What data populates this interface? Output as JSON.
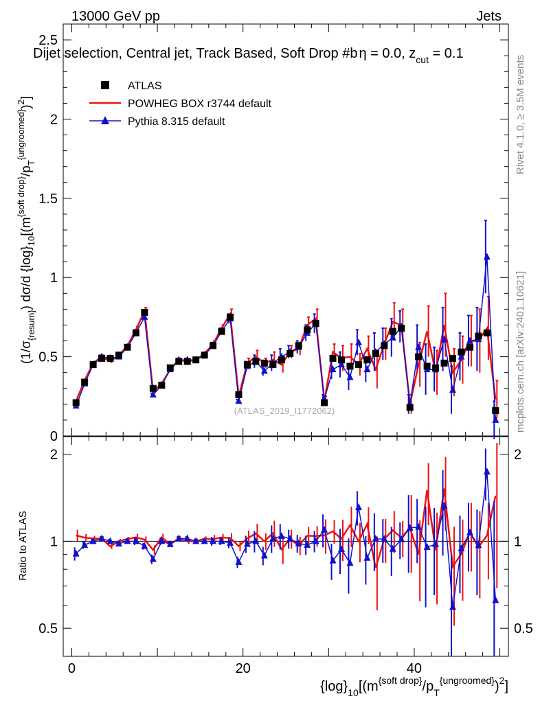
{
  "header": {
    "energy_label": "13000 GeV pp",
    "process_label": "Jets",
    "subtitle": "Dijet selection, Central jet, Track Based, Soft Drop #b = 0.0, z_cut = 0.1",
    "subtitle_main": "Dijet selection, Central jet, Track Based, Soft Drop #b",
    "subtitle_eta": "η = 0.0, z",
    "subtitle_cut": "cut",
    "subtitle_end": " = 0.1"
  },
  "side_labels": {
    "rivet": "Rivet 4.1.0, ≥ 3.5M events",
    "mcplots": "mcplots.cern.ch [arXiv:2401.10621]"
  },
  "watermark": "(ATLAS_2019_I1772062)",
  "axes": {
    "ylabel_main": "(1/σ{resum}) dσ/d {log}10[(m{soft drop}/pT{ungroomed})2]",
    "ylabel_ratio": "Ratio to ATLAS",
    "xlabel": "{log}10[(m{soft drop}/pT{ungroomed})2]",
    "main_yticks": [
      "0",
      "0.5",
      "1",
      "1.5",
      "2",
      "2.5"
    ],
    "ratio_yticks": [
      "0.5",
      "1",
      "2"
    ],
    "xticks": [
      "0",
      "20",
      "40"
    ]
  },
  "legend": [
    {
      "label": "ATLAS",
      "color": "#000000",
      "marker": "square"
    },
    {
      "label": "POWHEG BOX r3744 default",
      "color": "#ee1111",
      "marker": "line"
    },
    {
      "label": "Pythia 8.315 default",
      "color": "#1111cc",
      "marker": "triangle"
    }
  ],
  "chart_data": {
    "type": "line",
    "title": "Dijet selection, Central jet, Track Based, Soft Drop #b = 0.0, z_cut = 0.1",
    "xlabel": "{log}10[(m{soft drop}/pT{ungroomed})2]",
    "ylabel": "(1/σ{resum}) dσ/d {log}10[(m{soft drop}/pT{ungroomed})2]",
    "xlim": [
      -1,
      51
    ],
    "ylim": [
      0,
      2.6
    ],
    "ratio_ylim": [
      0.4,
      2.3
    ],
    "x": [
      0.5,
      1.5,
      2.5,
      3.5,
      4.5,
      5.5,
      6.5,
      7.5,
      8.5,
      9.5,
      10.5,
      11.5,
      12.5,
      13.5,
      14.5,
      15.5,
      16.5,
      17.5,
      18.5,
      19.5,
      20.5,
      21.5,
      22.5,
      23.5,
      24.5,
      25.5,
      26.5,
      27.5,
      28.5,
      29.5,
      30.5,
      31.5,
      32.5,
      33.5,
      34.5,
      35.5,
      36.5,
      37.5,
      38.5,
      39.5,
      40.5,
      41.5,
      42.5,
      43.5,
      44.5,
      45.5,
      46.5,
      47.5,
      48.5,
      49.5
    ],
    "series": [
      {
        "name": "ATLAS",
        "color": "#000000",
        "values": [
          0.21,
          0.34,
          0.45,
          0.49,
          0.49,
          0.51,
          0.56,
          0.65,
          0.78,
          0.3,
          0.32,
          0.43,
          0.47,
          0.47,
          0.48,
          0.51,
          0.57,
          0.66,
          0.75,
          0.26,
          0.45,
          0.47,
          0.46,
          0.45,
          0.48,
          0.52,
          0.57,
          0.67,
          0.71,
          0.21,
          0.49,
          0.48,
          0.44,
          0.45,
          0.48,
          0.52,
          0.57,
          0.66,
          0.68,
          0.18,
          0.5,
          0.44,
          0.43,
          0.46,
          0.49,
          0.53,
          0.56,
          0.63,
          0.65,
          0.16
        ]
      },
      {
        "name": "POWHEG BOX r3744 default",
        "color": "#ee1111",
        "values": [
          0.22,
          0.35,
          0.46,
          0.5,
          0.47,
          0.51,
          0.57,
          0.67,
          0.79,
          0.28,
          0.33,
          0.42,
          0.48,
          0.47,
          0.48,
          0.52,
          0.58,
          0.68,
          0.77,
          0.25,
          0.46,
          0.5,
          0.46,
          0.48,
          0.45,
          0.53,
          0.55,
          0.7,
          0.74,
          0.22,
          0.53,
          0.49,
          0.5,
          0.45,
          0.55,
          0.42,
          0.58,
          0.72,
          0.7,
          0.2,
          0.45,
          0.66,
          0.4,
          0.7,
          0.4,
          0.48,
          0.6,
          0.6,
          0.68,
          0.23
        ]
      },
      {
        "name": "Pythia 8.315 default",
        "color": "#1111cc",
        "values": [
          0.19,
          0.33,
          0.45,
          0.5,
          0.49,
          0.5,
          0.56,
          0.65,
          0.75,
          0.26,
          0.32,
          0.42,
          0.48,
          0.48,
          0.48,
          0.51,
          0.57,
          0.66,
          0.74,
          0.22,
          0.44,
          0.47,
          0.41,
          0.46,
          0.5,
          0.53,
          0.56,
          0.65,
          0.71,
          0.23,
          0.42,
          0.45,
          0.37,
          0.59,
          0.42,
          0.53,
          0.58,
          0.62,
          0.69,
          0.2,
          0.56,
          0.42,
          0.42,
          0.61,
          0.29,
          0.5,
          0.6,
          0.61,
          1.13,
          0.1
        ]
      }
    ],
    "errors": {
      "POWHEG BOX r3744 default": [
        0.01,
        0.01,
        0.01,
        0.01,
        0.01,
        0.01,
        0.01,
        0.02,
        0.02,
        0.01,
        0.01,
        0.01,
        0.01,
        0.01,
        0.01,
        0.01,
        0.02,
        0.02,
        0.03,
        0.01,
        0.03,
        0.04,
        0.03,
        0.05,
        0.05,
        0.04,
        0.04,
        0.05,
        0.06,
        0.03,
        0.05,
        0.08,
        0.08,
        0.07,
        0.08,
        0.12,
        0.1,
        0.12,
        0.1,
        0.06,
        0.14,
        0.16,
        0.14,
        0.2,
        0.15,
        0.15,
        0.16,
        0.2,
        0.2,
        0.12
      ],
      "Pythia 8.315 default": [
        0.01,
        0.01,
        0.01,
        0.01,
        0.01,
        0.01,
        0.01,
        0.02,
        0.02,
        0.01,
        0.01,
        0.01,
        0.01,
        0.01,
        0.01,
        0.01,
        0.02,
        0.02,
        0.03,
        0.01,
        0.03,
        0.04,
        0.03,
        0.05,
        0.05,
        0.04,
        0.04,
        0.05,
        0.06,
        0.03,
        0.06,
        0.08,
        0.08,
        0.08,
        0.08,
        0.12,
        0.1,
        0.12,
        0.1,
        0.06,
        0.14,
        0.16,
        0.14,
        0.2,
        0.15,
        0.15,
        0.16,
        0.2,
        0.23,
        0.12
      ]
    }
  }
}
